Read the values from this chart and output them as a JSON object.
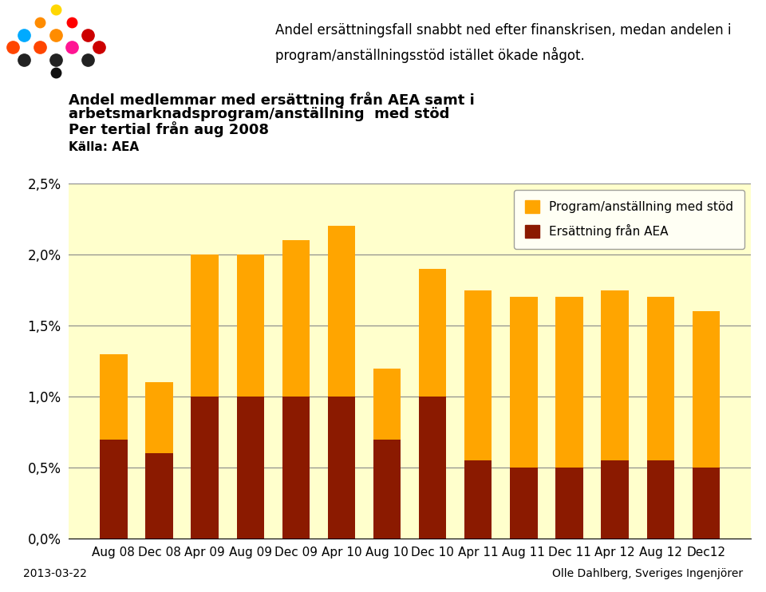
{
  "categories": [
    "Aug 08",
    "Dec 08",
    "Apr 09",
    "Aug 09",
    "Dec 09",
    "Apr 10",
    "Aug 10",
    "Dec 10",
    "Apr 11",
    "Aug 11",
    "Dec 11",
    "Apr 12",
    "Aug 12",
    "Dec12"
  ],
  "ersattning": [
    0.7,
    0.6,
    1.0,
    1.0,
    1.0,
    1.0,
    0.7,
    1.0,
    0.55,
    0.5,
    0.5,
    0.55,
    0.55,
    0.5
  ],
  "program": [
    0.6,
    0.5,
    1.0,
    1.0,
    1.1,
    1.2,
    0.5,
    0.9,
    1.2,
    1.2,
    1.2,
    1.2,
    1.15,
    1.1
  ],
  "color_ersattning": "#8B1A00",
  "color_program": "#FFA500",
  "background_color": "#FFFFCC",
  "title_line1": "Andel medlemmar med ersättning från AEA samt i",
  "title_line2": "arbetsmarknadsprogram/anställning  med stöd",
  "title_line3": "Per tertial från aug 2008",
  "source_label": "Källa: AEA",
  "legend_program": "Program/anställning med stöd",
  "legend_ersattning": "Ersättning från AEA",
  "ylim": [
    0.0,
    0.025
  ],
  "yticks": [
    0.0,
    0.005,
    0.01,
    0.015,
    0.02,
    0.025
  ],
  "ytick_labels": [
    "0,0%",
    "0,5%",
    "1,0%",
    "1,5%",
    "2,0%",
    "2,5%"
  ],
  "callout_text": "Andel ersättningsfall snabbt ned efter finanskrisen, medan andelen i\nprogram/anställningsstöd istället ökade något.",
  "footer_left": "2013-03-22",
  "footer_right": "Olle Dahlberg, Sveriges Ingenjörer",
  "logo_colors": [
    "#FFD700",
    "#FF8C00",
    "#FF0000",
    "#00BFFF",
    "#FFA500",
    "#CC0000",
    "#FF4500",
    "#CC0000",
    "#FF69B4",
    "#CC0000",
    "#000000",
    "#000000",
    "#000000"
  ],
  "callout_border_color": "#4A90D9",
  "callout_bg_color": "#E8F4FF"
}
